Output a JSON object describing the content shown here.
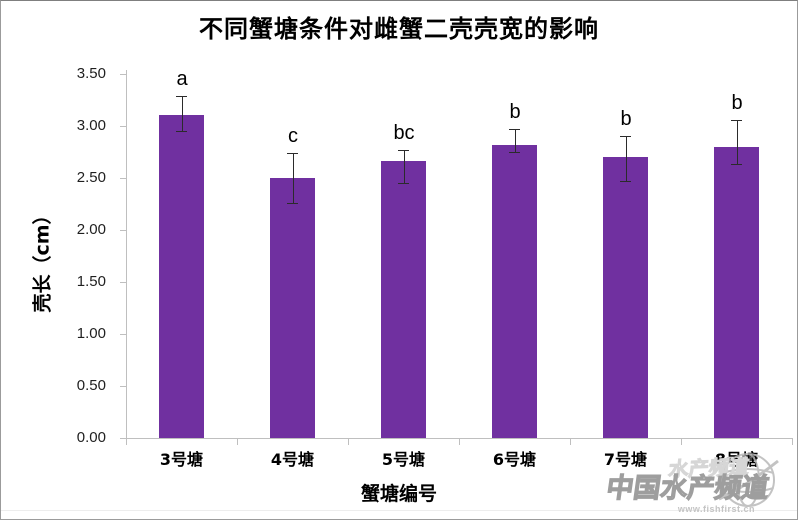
{
  "title": "不同蟹塘条件对雌蟹二壳壳宽的影响",
  "chart_data": {
    "type": "bar",
    "title": "不同蟹塘条件对雌蟹二壳壳宽的影响",
    "xlabel": "蟹塘编号",
    "ylabel": "壳长（cm）",
    "categories": [
      "3号塘",
      "4号塘",
      "5号塘",
      "6号塘",
      "7号塘",
      "8号塘"
    ],
    "values": [
      3.11,
      2.5,
      2.66,
      2.82,
      2.7,
      2.8
    ],
    "error_bars": {
      "upper": [
        3.29,
        2.74,
        2.77,
        2.97,
        2.9,
        3.06
      ],
      "lower": [
        2.95,
        2.26,
        2.45,
        2.75,
        2.47,
        2.63
      ]
    },
    "sig_letters": [
      "a",
      "c",
      "bc",
      "b",
      "b",
      "b"
    ],
    "ylim": [
      0.0,
      3.5
    ],
    "ytick_labels": [
      "0.00",
      "0.50",
      "1.00",
      "1.50",
      "2.00",
      "2.50",
      "3.00",
      "3.50"
    ],
    "bar_color": "#7030a0",
    "grid": false,
    "legend": false
  },
  "watermark": {
    "ghost_text": "水产频道",
    "text": "中国水产频道",
    "url": "www.fishfirst.cn"
  }
}
